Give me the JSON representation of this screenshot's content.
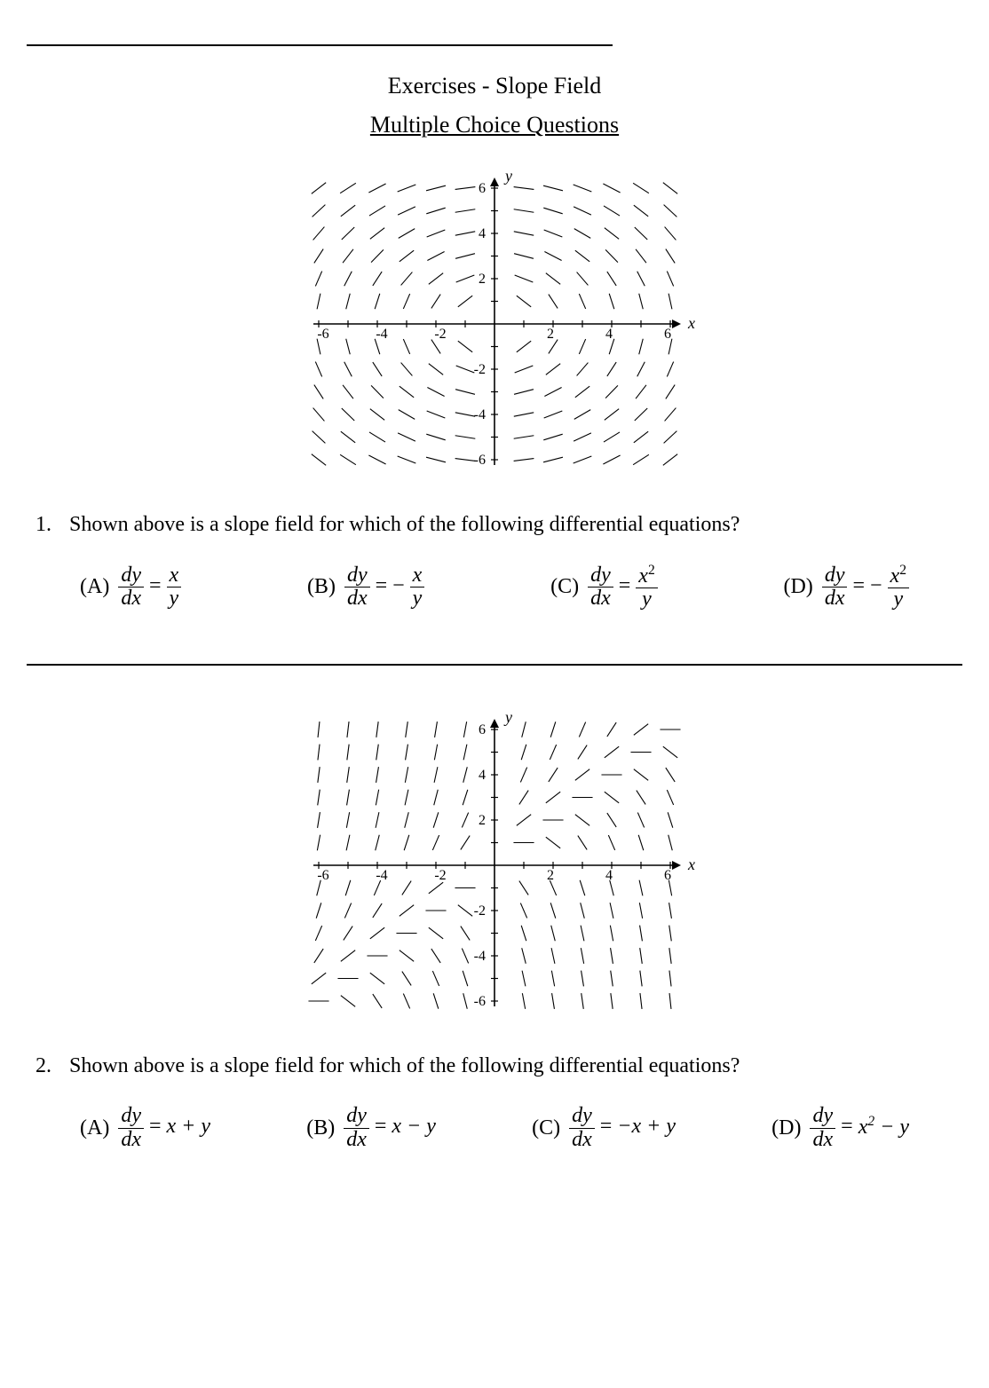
{
  "page_title": "Exercises - Slope Field",
  "section_title": "Multiple Choice Questions",
  "hr_color": "#000000",
  "background_color": "#ffffff",
  "text_color": "#000000",
  "font_family": "Times New Roman",
  "q1": {
    "number": "1.",
    "text": "Shown above is a slope field for which of the following differential equations?",
    "choices": {
      "A_label": "(A)",
      "B_label": "(B)",
      "C_label": "(C)",
      "D_label": "(D)"
    },
    "figure": {
      "type": "slope_field",
      "equation": "dy/dx = -x / y",
      "x_range": [
        -6,
        6
      ],
      "y_range": [
        -6,
        6
      ],
      "x_tick_step": 1,
      "y_tick_step": 1,
      "y_axis_labels": [
        "6",
        "4",
        "2",
        "-2",
        "-4",
        "-6"
      ],
      "x_axis_labels": [
        "-6",
        "-4",
        "-2",
        "2",
        "4",
        "6"
      ],
      "axis_label_x": "x",
      "axis_label_y": "y",
      "segment_length": 0.7,
      "segment_color": "#000000",
      "segment_width": 1.1,
      "axis_color": "#000000",
      "label_fontsize": 16,
      "skip_origin_row_col": false
    }
  },
  "q2": {
    "number": "2.",
    "text": "Shown above is a slope field for which of the following differential equations?",
    "choices": {
      "A_label": "(A)",
      "A_rhs": "x + y",
      "B_label": "(B)",
      "B_rhs": "x − y",
      "C_label": "(C)",
      "C_rhs": "−x + y",
      "D_label": "(D)",
      "D_rhs_pre": "x",
      "D_rhs_post": " − y"
    },
    "figure": {
      "type": "slope_field",
      "equation": "dy/dx = -x + y",
      "x_range": [
        -6,
        6
      ],
      "y_range": [
        -6,
        6
      ],
      "x_tick_step": 1,
      "y_tick_step": 1,
      "y_axis_labels": [
        "6",
        "4",
        "2",
        "-2",
        "-4",
        "-6"
      ],
      "x_axis_labels": [
        "-6",
        "-4",
        "-2",
        "2",
        "4",
        "6"
      ],
      "axis_label_x": "x",
      "axis_label_y": "y",
      "segment_length": 0.7,
      "segment_color": "#000000",
      "segment_width": 1.1,
      "axis_color": "#000000",
      "label_fontsize": 16
    }
  }
}
